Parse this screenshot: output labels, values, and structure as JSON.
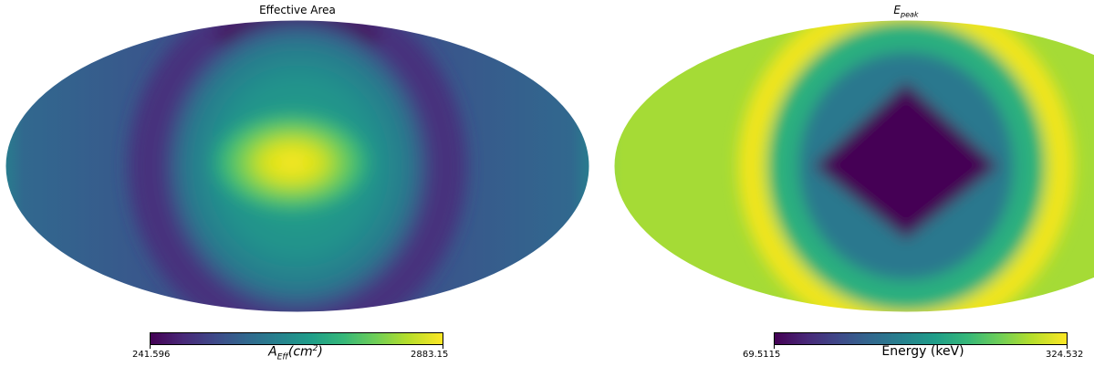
{
  "chart_data": [
    {
      "type": "heatmap",
      "projection": "mollweide",
      "title": "Effective Area",
      "colormap": "viridis",
      "colorbar": {
        "label": "A_Eff (cm^2)",
        "label_main": "A",
        "label_sub": "Eff",
        "label_rest": "(cm",
        "label_sup": "2",
        "label_close": ")",
        "min": 241.596,
        "max": 2883.15,
        "min_label": "241.596",
        "max_label": "2883.15"
      },
      "grid": false
    },
    {
      "type": "heatmap",
      "projection": "mollweide",
      "title": "E_peak",
      "title_main": "E",
      "title_sub": "peak",
      "colormap": "viridis",
      "colorbar": {
        "label": "Energy (keV)",
        "min": 69.5115,
        "max": 324.532,
        "min_label": "69.5115",
        "max_label": "324.532"
      },
      "grid": false
    }
  ]
}
